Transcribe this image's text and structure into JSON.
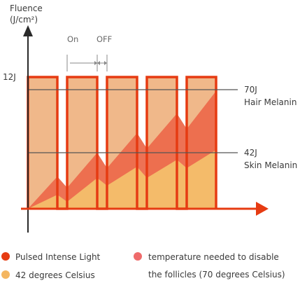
{
  "y_axis": {
    "title_line1": "Fluence",
    "title_line2": "(J/cm²)",
    "tick": "12J"
  },
  "timing": {
    "on": "On",
    "off": "OFF"
  },
  "levels": [
    {
      "value": "70J",
      "name": "Hair Melanin"
    },
    {
      "value": "42J",
      "name": "Skin Melanin"
    }
  ],
  "legend": [
    {
      "label": "Pulsed Intense Light",
      "color": "#e63b12"
    },
    {
      "label": "temperature needed to disable",
      "label2": "the follicles (70 degrees Celsius)",
      "color": "#ef6b6b"
    },
    {
      "label": "42 degrees Celsius",
      "color": "#f4b661"
    }
  ],
  "colors": {
    "pulse": "#e63b12",
    "pulse_fill": "#f0b88a",
    "tissue": "#ec6a4c",
    "skin": "#f4bb6a",
    "level_line": "#555555",
    "axis": "#2a2a2a"
  }
}
